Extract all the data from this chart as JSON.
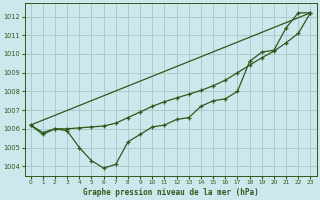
{
  "background_color": "#cce8ec",
  "grid_color": "#aacccc",
  "line_color": "#2d5a1b",
  "xlabel": "Graphe pression niveau de la mer (hPa)",
  "xlim": [
    -0.5,
    23.5
  ],
  "ylim": [
    1003.5,
    1012.7
  ],
  "yticks": [
    1004,
    1005,
    1006,
    1007,
    1008,
    1009,
    1010,
    1011,
    1012
  ],
  "xticks": [
    0,
    1,
    2,
    3,
    4,
    5,
    6,
    7,
    8,
    9,
    10,
    11,
    12,
    13,
    14,
    15,
    16,
    17,
    18,
    19,
    20,
    21,
    22,
    23
  ],
  "series1_x": [
    0,
    1,
    2,
    3,
    4,
    5,
    6,
    7,
    8,
    9,
    10,
    11,
    12,
    13,
    14,
    15,
    16,
    17,
    18,
    19,
    20,
    21,
    22,
    23
  ],
  "series1_y": [
    1006.2,
    1005.7,
    1006.0,
    1005.9,
    1005.0,
    1004.3,
    1003.9,
    1004.1,
    1005.3,
    1005.7,
    1006.1,
    1006.2,
    1006.5,
    1006.6,
    1007.2,
    1007.5,
    1007.6,
    1008.0,
    1009.6,
    1010.1,
    1010.2,
    1011.4,
    1012.2,
    1012.2
  ],
  "series2_x": [
    0,
    1,
    2,
    3,
    4,
    5,
    6,
    7,
    8,
    9,
    10,
    11,
    12,
    13,
    14,
    15,
    16,
    17,
    18,
    19,
    20,
    21,
    22,
    23
  ],
  "series2_y": [
    1006.2,
    1005.8,
    1006.0,
    1006.0,
    1006.05,
    1006.1,
    1006.15,
    1006.3,
    1006.6,
    1006.9,
    1007.2,
    1007.45,
    1007.65,
    1007.85,
    1008.05,
    1008.3,
    1008.6,
    1009.0,
    1009.4,
    1009.8,
    1010.15,
    1010.6,
    1011.1,
    1012.2
  ],
  "series3_x": [
    0,
    23
  ],
  "series3_y": [
    1006.2,
    1012.2
  ]
}
